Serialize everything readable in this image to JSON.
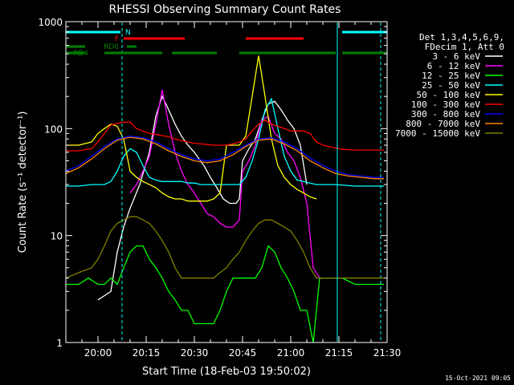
{
  "title": "RHESSI Observing Summary Count Rates",
  "timestamp": "15-Oct-2021 09:05",
  "chart_data": {
    "type": "line",
    "title": "RHESSI Observing Summary Count Rates",
    "xlabel": "Start Time (18-Feb-03 19:50:02)",
    "ylabel": "Count Rate (s⁻¹ detector⁻¹)",
    "yscale": "log",
    "xlim_minutes": [
      -10,
      90
    ],
    "ylim": [
      1,
      1000
    ],
    "x_ticks": [
      "20:00",
      "20:15",
      "20:30",
      "20:45",
      "21:00",
      "21:15",
      "21:30"
    ],
    "x_tick_minutes": [
      0,
      15,
      30,
      45,
      60,
      75,
      90
    ],
    "y_ticks": [
      "1",
      "10",
      "100",
      "1000"
    ],
    "y_tick_values": [
      1,
      10,
      100,
      1000
    ],
    "legend_header": [
      "Det 1,3,4,5,6,9,",
      "FDecim 1, Att 0"
    ],
    "legend_position": "right",
    "series": [
      {
        "name": "3 - 6 keV",
        "color": "#ffffff",
        "x": [
          -10,
          -4,
          0,
          4,
          6,
          8,
          10,
          13,
          16,
          18,
          20,
          22,
          24,
          26,
          28,
          30,
          33,
          35,
          37,
          39,
          41,
          43,
          44,
          45,
          47,
          49,
          51,
          53,
          55,
          57,
          59,
          61,
          63,
          65,
          68
        ],
        "y": [
          null,
          null,
          2.5,
          3,
          7,
          12,
          18,
          30,
          60,
          130,
          200,
          150,
          110,
          85,
          70,
          60,
          45,
          35,
          28,
          22,
          20,
          20,
          22,
          50,
          65,
          80,
          120,
          170,
          180,
          150,
          120,
          100,
          70,
          30,
          null
        ]
      },
      {
        "name": "6 - 12 keV",
        "color": "#ff00ff",
        "x": [
          -10,
          -6,
          -3,
          0,
          2,
          4,
          6,
          8,
          10,
          12,
          14,
          16,
          18,
          20,
          22,
          24,
          26,
          28,
          30,
          32,
          34,
          36,
          38,
          40,
          42,
          44,
          45,
          47,
          49,
          51,
          53,
          55,
          57,
          59,
          61,
          63,
          65,
          67,
          69
        ],
        "y": [
          null,
          null,
          null,
          null,
          null,
          null,
          null,
          null,
          25,
          30,
          40,
          55,
          110,
          230,
          110,
          60,
          40,
          30,
          25,
          20,
          16,
          15,
          13,
          12,
          12,
          14,
          40,
          50,
          70,
          120,
          130,
          90,
          80,
          60,
          50,
          35,
          20,
          5,
          4
        ]
      },
      {
        "name": "12 - 25 keV",
        "color": "#00ff00",
        "x": [
          -10,
          -6,
          -3,
          0,
          2,
          4,
          6,
          8,
          10,
          12,
          14,
          16,
          18,
          20,
          22,
          24,
          26,
          28,
          30,
          32,
          34,
          36,
          38,
          40,
          42,
          44,
          45,
          47,
          49,
          51,
          53,
          55,
          57,
          59,
          61,
          63,
          65,
          67,
          69,
          72,
          76,
          80,
          85,
          89
        ],
        "y": [
          3.5,
          3.5,
          4,
          3.5,
          3.5,
          4,
          3.5,
          5,
          7,
          8,
          8,
          6,
          5,
          4,
          3,
          2.5,
          2,
          2,
          1.5,
          1.5,
          1.5,
          1.5,
          2,
          3,
          4,
          4,
          4,
          4,
          4,
          5,
          8,
          7,
          5,
          4,
          3,
          2,
          2,
          1,
          4,
          4,
          4,
          3.5,
          3.5,
          3.5
        ]
      },
      {
        "name": "25 - 50 keV",
        "color": "#00ffff",
        "x": [
          -10,
          -6,
          -2,
          0,
          2,
          4,
          6,
          8,
          10,
          12,
          14,
          16,
          18,
          20,
          22,
          24,
          26,
          28,
          30,
          32,
          34,
          36,
          38,
          40,
          42,
          44,
          46,
          48,
          50,
          52,
          54,
          56,
          58,
          60,
          62,
          64,
          66,
          68,
          70,
          74,
          80,
          85,
          89
        ],
        "y": [
          29,
          29,
          30,
          30,
          30,
          32,
          40,
          55,
          65,
          60,
          45,
          35,
          33,
          32,
          32,
          32,
          32,
          31,
          31,
          30,
          30,
          30,
          30,
          30,
          30,
          30,
          35,
          50,
          80,
          150,
          190,
          100,
          55,
          40,
          33,
          32,
          31,
          30,
          30,
          30,
          29,
          29,
          29
        ]
      },
      {
        "name": "50 - 100 keV",
        "color": "#ffff00",
        "x": [
          -10,
          -6,
          -2,
          0,
          2,
          4,
          6,
          8,
          10,
          12,
          14,
          16,
          18,
          20,
          22,
          24,
          26,
          28,
          30,
          32,
          34,
          36,
          38,
          40,
          42,
          44,
          46,
          48,
          50,
          52,
          54,
          56,
          58,
          60,
          62,
          64,
          66,
          68,
          70,
          72
        ],
        "y": [
          70,
          70,
          75,
          90,
          100,
          110,
          105,
          80,
          40,
          35,
          32,
          30,
          28,
          25,
          23,
          22,
          22,
          21,
          21,
          21,
          21,
          22,
          25,
          70,
          70,
          70,
          85,
          200,
          480,
          200,
          80,
          45,
          35,
          30,
          27,
          25,
          23,
          22,
          null,
          null
        ]
      },
      {
        "name": "100 - 300 keV",
        "color": "#ff0000",
        "x": [
          -10,
          -6,
          -2,
          0,
          2,
          4,
          6,
          8,
          10,
          12,
          14,
          16,
          18,
          20,
          22,
          24,
          26,
          28,
          30,
          32,
          34,
          36,
          38,
          40,
          42,
          44,
          46,
          48,
          50,
          52,
          54,
          56,
          58,
          60,
          62,
          64,
          66,
          68,
          70,
          72,
          76,
          80,
          85,
          89
        ],
        "y": [
          62,
          62,
          65,
          75,
          90,
          108,
          112,
          115,
          115,
          100,
          95,
          90,
          88,
          86,
          84,
          80,
          77,
          75,
          73,
          72,
          71,
          70,
          70,
          70,
          72,
          75,
          80,
          95,
          110,
          120,
          110,
          105,
          100,
          95,
          95,
          95,
          90,
          75,
          70,
          68,
          64,
          63,
          63,
          63
        ]
      },
      {
        "name": "300 - 800 keV",
        "color": "#0000ff",
        "x": [
          -10,
          -6,
          -2,
          2,
          6,
          10,
          14,
          18,
          22,
          26,
          30,
          34,
          38,
          42,
          46,
          50,
          54,
          58,
          62,
          66,
          70,
          74,
          78,
          82,
          86,
          89
        ],
        "y": [
          40,
          45,
          55,
          68,
          80,
          85,
          82,
          75,
          65,
          57,
          52,
          50,
          52,
          60,
          70,
          80,
          82,
          75,
          65,
          53,
          45,
          40,
          37,
          36,
          35,
          35
        ]
      },
      {
        "name": "800 - 7000 keV",
        "color": "#ff8800",
        "x": [
          -10,
          -6,
          -2,
          2,
          6,
          10,
          14,
          18,
          22,
          26,
          30,
          34,
          38,
          42,
          46,
          50,
          54,
          58,
          62,
          66,
          70,
          74,
          78,
          82,
          86,
          89
        ],
        "y": [
          38,
          43,
          52,
          65,
          78,
          83,
          80,
          72,
          62,
          55,
          50,
          48,
          50,
          57,
          68,
          78,
          80,
          72,
          62,
          50,
          43,
          38,
          36,
          35,
          34,
          34
        ]
      },
      {
        "name": "7000 - 15000 keV",
        "color": "#808000",
        "x": [
          -10,
          -6,
          -2,
          0,
          2,
          4,
          6,
          8,
          10,
          12,
          14,
          16,
          18,
          20,
          22,
          24,
          26,
          28,
          30,
          32,
          34,
          36,
          38,
          40,
          42,
          44,
          46,
          48,
          50,
          52,
          54,
          56,
          58,
          60,
          62,
          64,
          66,
          68,
          70,
          72,
          76,
          80,
          85,
          89
        ],
        "y": [
          4,
          4.5,
          5,
          6,
          8,
          11,
          13,
          14,
          15,
          15,
          14,
          13,
          11,
          9,
          7,
          5,
          4,
          4,
          4,
          4,
          4,
          4,
          4.5,
          5,
          6,
          7,
          9,
          11,
          13,
          14,
          14,
          13,
          12,
          11,
          9,
          7,
          5,
          4,
          4,
          4,
          4,
          4,
          4,
          4
        ]
      }
    ],
    "flags": [
      {
        "label": "N",
        "color": "#00ffff",
        "segments": [
          [
            -10,
            7
          ],
          [
            76,
            90
          ]
        ]
      },
      {
        "label": "F",
        "color": "#ff0000",
        "segments": [
          [
            8,
            27
          ],
          [
            46,
            64
          ]
        ]
      },
      {
        "label": "RD0",
        "color": "#008000",
        "segments": [
          [
            9,
            12
          ]
        ]
      },
      {
        "label": "RD4",
        "color": "#008000",
        "segments": [
          [
            -10,
            -4
          ],
          [
            2,
            20
          ],
          [
            23,
            37
          ],
          [
            44,
            74
          ],
          [
            76,
            90
          ]
        ]
      },
      {
        "label": "",
        "color": "#008000",
        "segments": [
          [
            -10,
            -4
          ]
        ]
      }
    ],
    "vertical_markers": [
      {
        "minute": 7.5,
        "style": "dashed",
        "color": "#00ffff"
      },
      {
        "minute": 74.5,
        "style": "solid",
        "color": "#00ffff"
      },
      {
        "minute": 88,
        "style": "dashed",
        "color": "#00ffff"
      }
    ]
  }
}
